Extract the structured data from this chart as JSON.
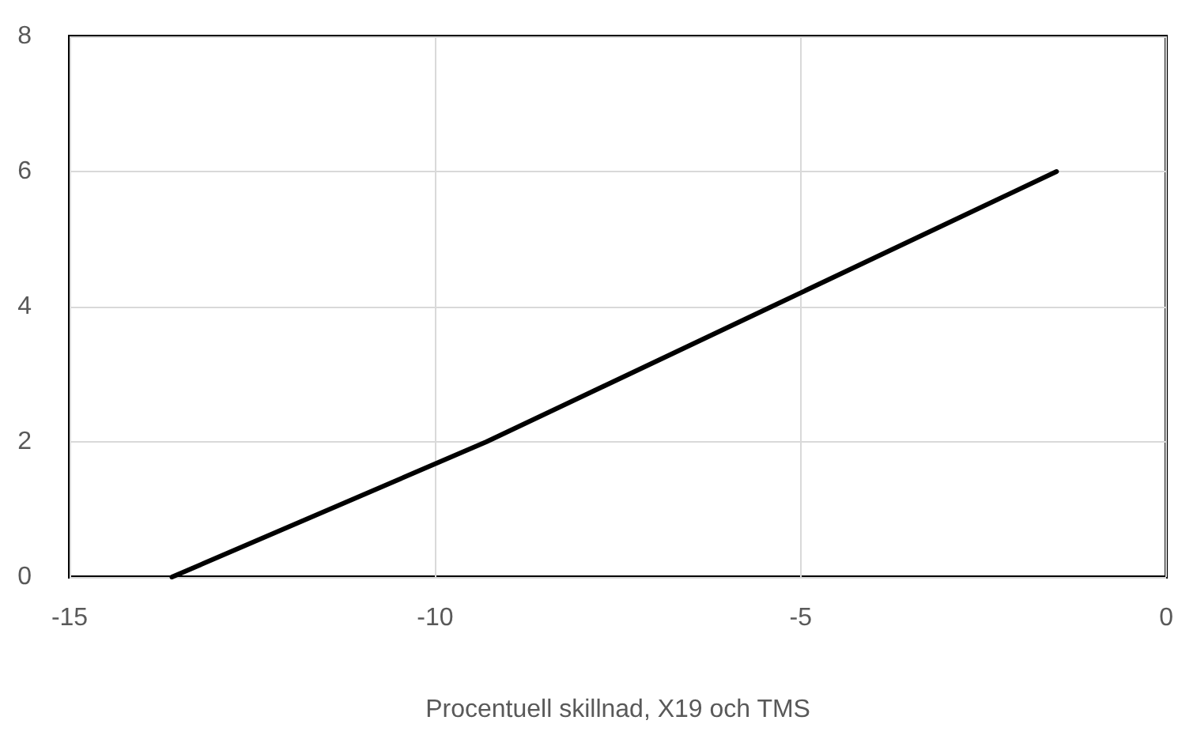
{
  "chart_data": {
    "type": "line",
    "xlabel": "Procentuell skillnad, X19 och TMS",
    "x": [
      -13.6,
      -9.3,
      -5.4,
      -1.5
    ],
    "series": [
      {
        "color": "#000000",
        "values": [
          0,
          2,
          4,
          6
        ]
      }
    ],
    "xlim": [
      -15,
      0
    ],
    "xticks": [
      -15,
      -10,
      -5,
      0
    ],
    "ylim": [
      0,
      8
    ],
    "yticks": [
      0,
      2,
      4,
      6,
      8
    ],
    "grid": true,
    "marker": "none",
    "line_style": "solid"
  }
}
